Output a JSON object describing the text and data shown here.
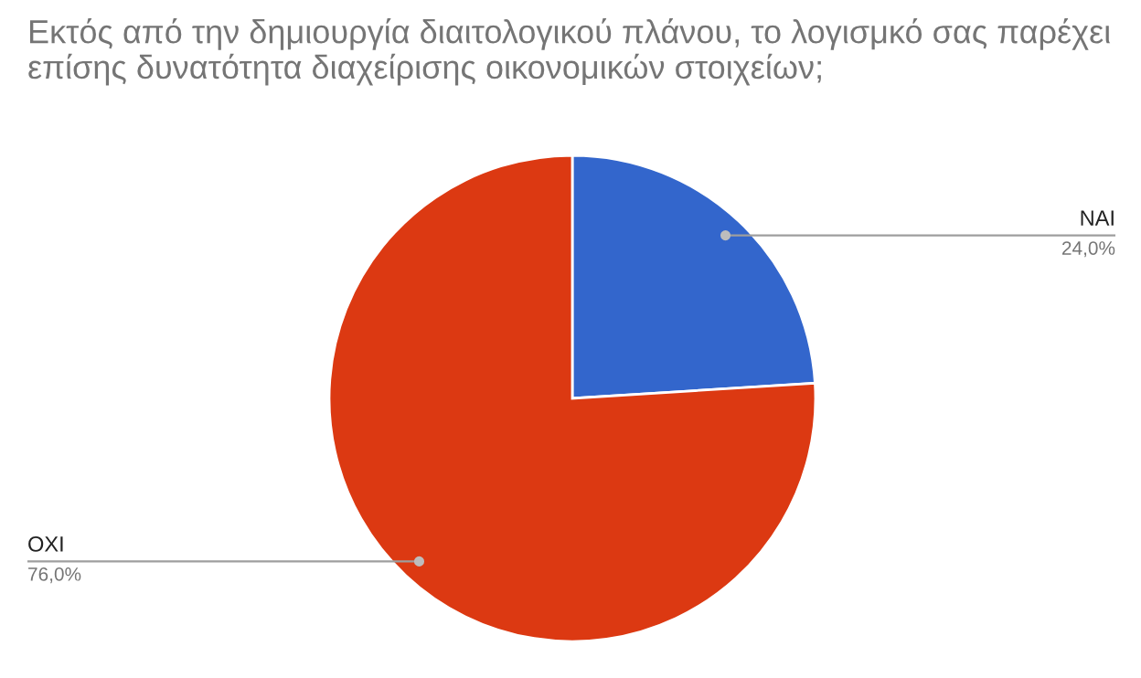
{
  "chart_data": {
    "type": "pie",
    "title": "Εκτός από την δημιουργία διαιτολογικού πλάνου, το λογισμκό σας παρέχει επίσης δυνατότητα διαχείρισης οικονομικών στοιχείων;",
    "categories": [
      "ΝΑΙ",
      "ΟΧΙ"
    ],
    "values": [
      24,
      76
    ],
    "colors": [
      "#3366cc",
      "#dc3912"
    ],
    "value_labels": [
      "24,0%",
      "76,0%"
    ]
  }
}
